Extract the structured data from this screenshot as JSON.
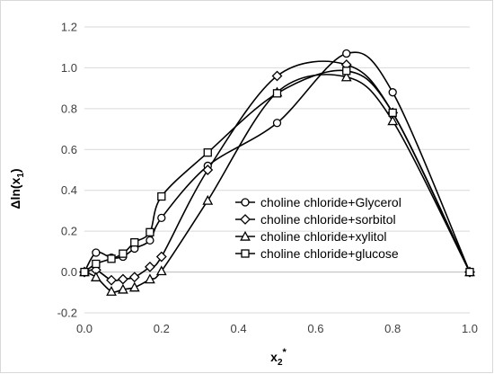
{
  "chart_data": {
    "type": "line",
    "title": "",
    "xlabel": {
      "base": "x",
      "sub": "2",
      "sup": "*"
    },
    "ylabel": {
      "prefix": "Δln(x",
      "sub": "1",
      "suffix": ")"
    },
    "xlim": [
      0.0,
      1.0
    ],
    "ylim": [
      -0.2,
      1.2
    ],
    "xticks": [
      0.0,
      0.2,
      0.4,
      0.6,
      0.8,
      1.0
    ],
    "yticks": [
      -0.2,
      0.0,
      0.2,
      0.4,
      0.6,
      0.8,
      1.0,
      1.2
    ],
    "xtick_labels": [
      "0.0",
      "0.2",
      "0.4",
      "0.6",
      "0.8",
      "1.0"
    ],
    "ytick_labels": [
      "-0.2",
      "0.0",
      "0.2",
      "0.4",
      "0.6",
      "0.8",
      "1.0",
      "1.2"
    ],
    "grid": "horizontal",
    "legend_position": "center-right",
    "series": [
      {
        "name": "choline chloride+Glycerol",
        "marker": "circle",
        "x": [
          0.0,
          0.03,
          0.07,
          0.1,
          0.13,
          0.17,
          0.2,
          0.32,
          0.5,
          0.68,
          0.8,
          1.0
        ],
        "y": [
          0.0,
          0.095,
          0.07,
          0.075,
          0.115,
          0.155,
          0.265,
          0.52,
          0.73,
          1.07,
          0.88,
          0.0
        ]
      },
      {
        "name": "choline chloride+sorbitol",
        "marker": "diamond",
        "x": [
          0.0,
          0.03,
          0.07,
          0.1,
          0.13,
          0.17,
          0.2,
          0.32,
          0.5,
          0.68,
          0.8,
          1.0
        ],
        "y": [
          0.0,
          0.01,
          -0.04,
          -0.035,
          -0.025,
          0.025,
          0.075,
          0.5,
          0.96,
          1.015,
          0.78,
          0.0
        ]
      },
      {
        "name": "choline chloride+xylitol",
        "marker": "triangle",
        "x": [
          0.0,
          0.03,
          0.07,
          0.1,
          0.13,
          0.17,
          0.2,
          0.32,
          0.5,
          0.68,
          0.8,
          1.0
        ],
        "y": [
          0.0,
          -0.025,
          -0.095,
          -0.085,
          -0.075,
          -0.035,
          0.005,
          0.35,
          0.88,
          0.955,
          0.74,
          0.0
        ]
      },
      {
        "name": "choline chloride+glucose",
        "marker": "square",
        "x": [
          0.0,
          0.03,
          0.07,
          0.1,
          0.13,
          0.17,
          0.2,
          0.32,
          0.5,
          0.68,
          0.8,
          1.0
        ],
        "y": [
          0.0,
          0.04,
          0.065,
          0.09,
          0.145,
          0.195,
          0.37,
          0.585,
          0.875,
          0.985,
          0.78,
          0.0
        ]
      }
    ],
    "colors": {
      "line": "#000000",
      "marker_fill": "#ffffff",
      "grid": "#d9d9d9",
      "tick_text": "#404040"
    }
  }
}
